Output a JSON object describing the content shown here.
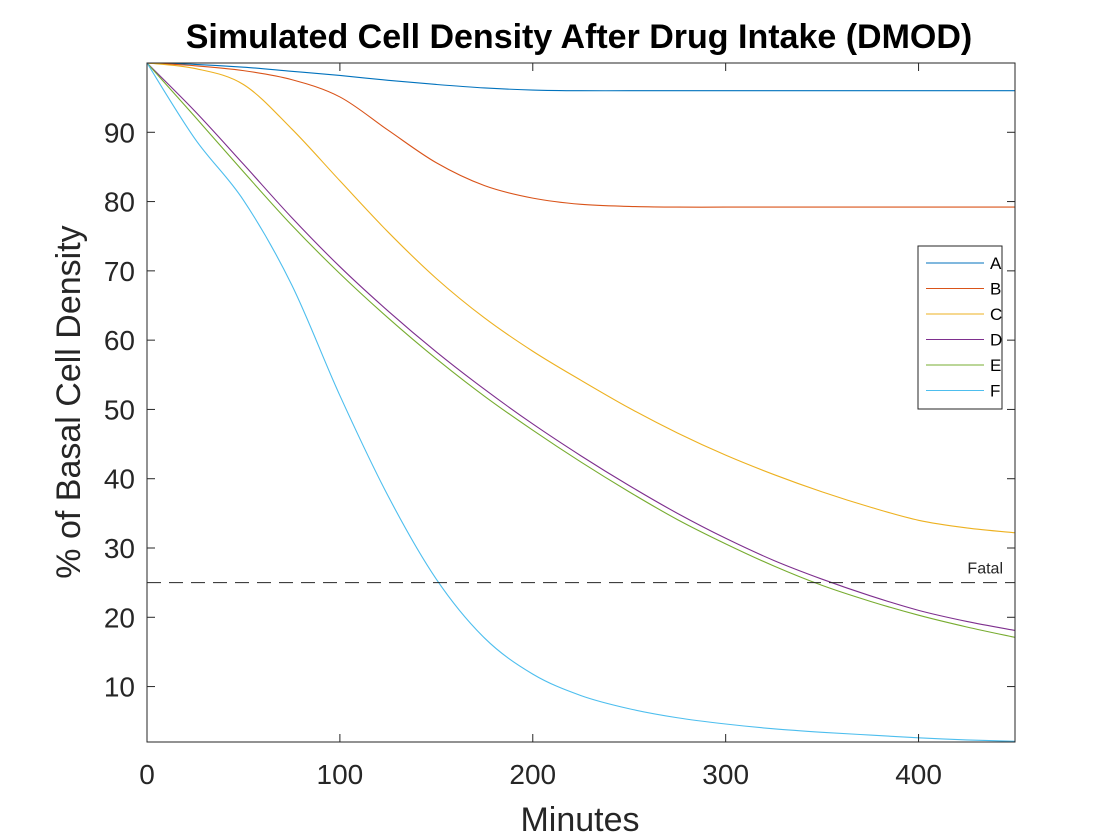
{
  "chart_data": {
    "type": "line",
    "title": "Simulated Cell Density After Drug Intake (DMOD)",
    "xlabel": "Minutes",
    "ylabel": "% of Basal Cell Density",
    "xlim": [
      0,
      450
    ],
    "ylim": [
      2,
      100
    ],
    "xticks": [
      0,
      100,
      200,
      300,
      400
    ],
    "yticks": [
      10,
      20,
      30,
      40,
      50,
      60,
      70,
      80,
      90
    ],
    "grid": false,
    "legend_position": "right",
    "x": [
      0,
      25,
      50,
      75,
      100,
      125,
      150,
      175,
      200,
      225,
      250,
      275,
      300,
      325,
      350,
      375,
      400,
      425,
      450
    ],
    "series": [
      {
        "name": "A",
        "color": "#0072BD",
        "values": [
          100,
          99.8,
          99.4,
          98.8,
          98.2,
          97.5,
          96.9,
          96.4,
          96.1,
          96.0,
          96.0,
          96.0,
          96.0,
          96.0,
          96.0,
          96.0,
          96.0,
          96.0,
          96.0
        ]
      },
      {
        "name": "B",
        "color": "#D95319",
        "values": [
          100,
          99.6,
          98.9,
          97.6,
          95.1,
          90.3,
          85.6,
          82.3,
          80.5,
          79.6,
          79.3,
          79.2,
          79.2,
          79.2,
          79.2,
          79.2,
          79.2,
          79.2,
          79.2
        ]
      },
      {
        "name": "C",
        "color": "#EDB120",
        "values": [
          100,
          99.2,
          96.9,
          90.5,
          83.0,
          75.6,
          68.9,
          63.2,
          58.4,
          54.2,
          50.2,
          46.6,
          43.4,
          40.6,
          38.1,
          35.9,
          34.0,
          32.9,
          32.2
        ]
      },
      {
        "name": "D",
        "color": "#7E2F8E",
        "values": [
          100,
          93.0,
          85.4,
          77.7,
          70.6,
          64.2,
          58.3,
          52.9,
          47.9,
          43.3,
          39.0,
          35.0,
          31.4,
          28.2,
          25.5,
          23.1,
          21.0,
          19.4,
          18.1
        ]
      },
      {
        "name": "E",
        "color": "#77AC30",
        "values": [
          100,
          92.2,
          84.3,
          76.6,
          69.6,
          63.2,
          57.3,
          51.9,
          47.0,
          42.4,
          38.1,
          34.1,
          30.6,
          27.4,
          24.6,
          22.3,
          20.3,
          18.6,
          17.1
        ]
      },
      {
        "name": "F",
        "color": "#4DBEEE",
        "values": [
          100,
          89.0,
          80.2,
          68.0,
          52.0,
          37.5,
          25.5,
          17.0,
          11.8,
          8.7,
          6.8,
          5.5,
          4.6,
          3.9,
          3.4,
          3.0,
          2.6,
          2.3,
          2.1
        ]
      }
    ],
    "reference_line": {
      "y": 25,
      "label": "Fatal",
      "style": "dashed",
      "color": "#262626"
    }
  }
}
